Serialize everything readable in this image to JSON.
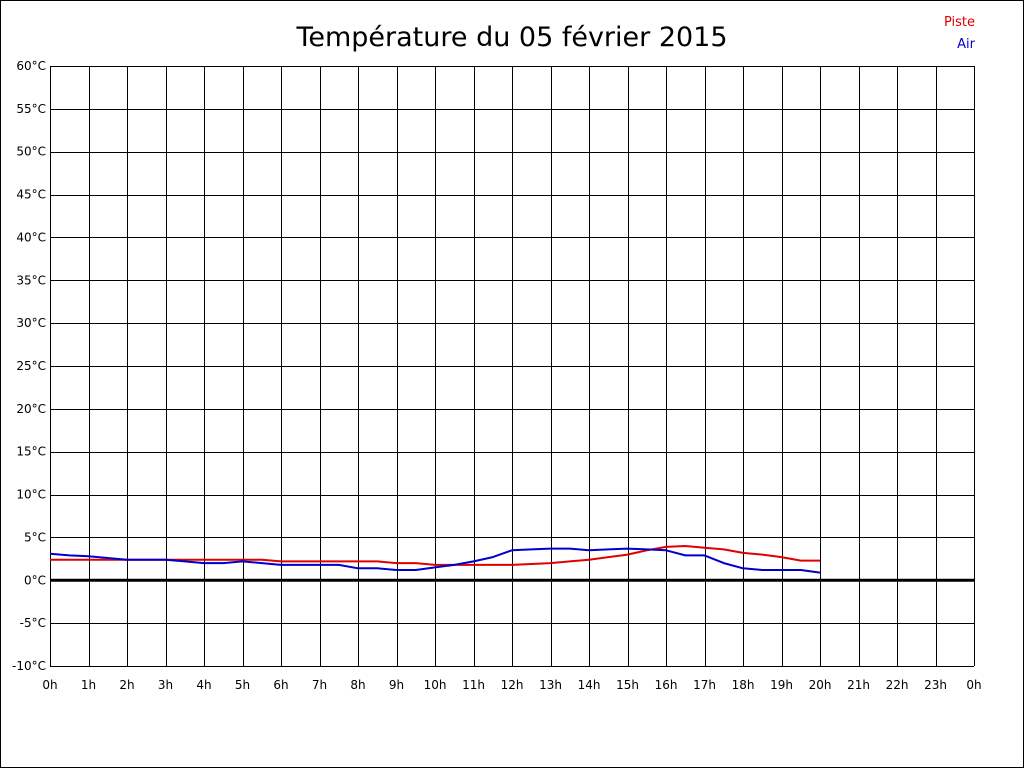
{
  "chart_data": {
    "type": "line",
    "title": "Température du 05 février 2015",
    "x_unit": "h",
    "y_unit": "°C",
    "xlim": [
      0,
      24
    ],
    "ylim": [
      -10,
      60
    ],
    "x_ticks": [
      0,
      1,
      2,
      3,
      4,
      5,
      6,
      7,
      8,
      9,
      10,
      11,
      12,
      13,
      14,
      15,
      16,
      17,
      18,
      19,
      20,
      21,
      22,
      23,
      24
    ],
    "x_tick_labels": [
      "0h",
      "1h",
      "2h",
      "3h",
      "4h",
      "5h",
      "6h",
      "7h",
      "8h",
      "9h",
      "10h",
      "11h",
      "12h",
      "13h",
      "14h",
      "15h",
      "16h",
      "17h",
      "18h",
      "19h",
      "20h",
      "21h",
      "22h",
      "23h",
      "0h"
    ],
    "y_ticks": [
      -10,
      -5,
      0,
      5,
      10,
      15,
      20,
      25,
      30,
      35,
      40,
      45,
      50,
      55,
      60
    ],
    "y_tick_labels": [
      "-10°C",
      "-5°C",
      "0°C",
      "5°C",
      "10°C",
      "15°C",
      "20°C",
      "25°C",
      "30°C",
      "35°C",
      "40°C",
      "45°C",
      "50°C",
      "55°C",
      "60°C"
    ],
    "grid": true,
    "zero_line": true,
    "legend_position": "top-right",
    "series": [
      {
        "name": "Piste",
        "color": "#e00000",
        "x": [
          0,
          0.5,
          1,
          1.5,
          2,
          2.5,
          3,
          3.5,
          4,
          4.5,
          5,
          5.5,
          6,
          6.5,
          7,
          7.5,
          8,
          8.5,
          9,
          9.5,
          10,
          10.5,
          11,
          11.5,
          12,
          12.5,
          13,
          13.5,
          14,
          14.5,
          15,
          15.5,
          16,
          16.5,
          17,
          17.5,
          18,
          18.5,
          19,
          19.5,
          20
        ],
        "y": [
          2.4,
          2.4,
          2.4,
          2.4,
          2.4,
          2.4,
          2.4,
          2.4,
          2.4,
          2.4,
          2.4,
          2.4,
          2.2,
          2.2,
          2.2,
          2.2,
          2.2,
          2.2,
          2.0,
          2.0,
          1.8,
          1.8,
          1.8,
          1.8,
          1.8,
          1.9,
          2.0,
          2.2,
          2.4,
          2.7,
          3.0,
          3.5,
          3.9,
          4.0,
          3.8,
          3.6,
          3.2,
          3.0,
          2.7,
          2.3,
          2.3
        ]
      },
      {
        "name": "Air",
        "color": "#0000cc",
        "x": [
          0,
          0.5,
          1,
          1.5,
          2,
          2.5,
          3,
          3.5,
          4,
          4.5,
          5,
          5.5,
          6,
          6.5,
          7,
          7.5,
          8,
          8.5,
          9,
          9.5,
          10,
          10.5,
          11,
          11.5,
          12,
          12.5,
          13,
          13.5,
          14,
          14.5,
          15,
          15.5,
          16,
          16.5,
          17,
          17.5,
          18,
          18.5,
          19,
          19.5,
          20
        ],
        "y": [
          3.1,
          2.9,
          2.8,
          2.6,
          2.4,
          2.4,
          2.4,
          2.2,
          2.0,
          2.0,
          2.2,
          2.0,
          1.8,
          1.8,
          1.8,
          1.8,
          1.4,
          1.4,
          1.2,
          1.2,
          1.5,
          1.8,
          2.2,
          2.7,
          3.5,
          3.6,
          3.7,
          3.7,
          3.5,
          3.6,
          3.7,
          3.6,
          3.5,
          2.9,
          2.9,
          2.0,
          1.4,
          1.2,
          1.2,
          1.2,
          0.9
        ]
      }
    ]
  }
}
